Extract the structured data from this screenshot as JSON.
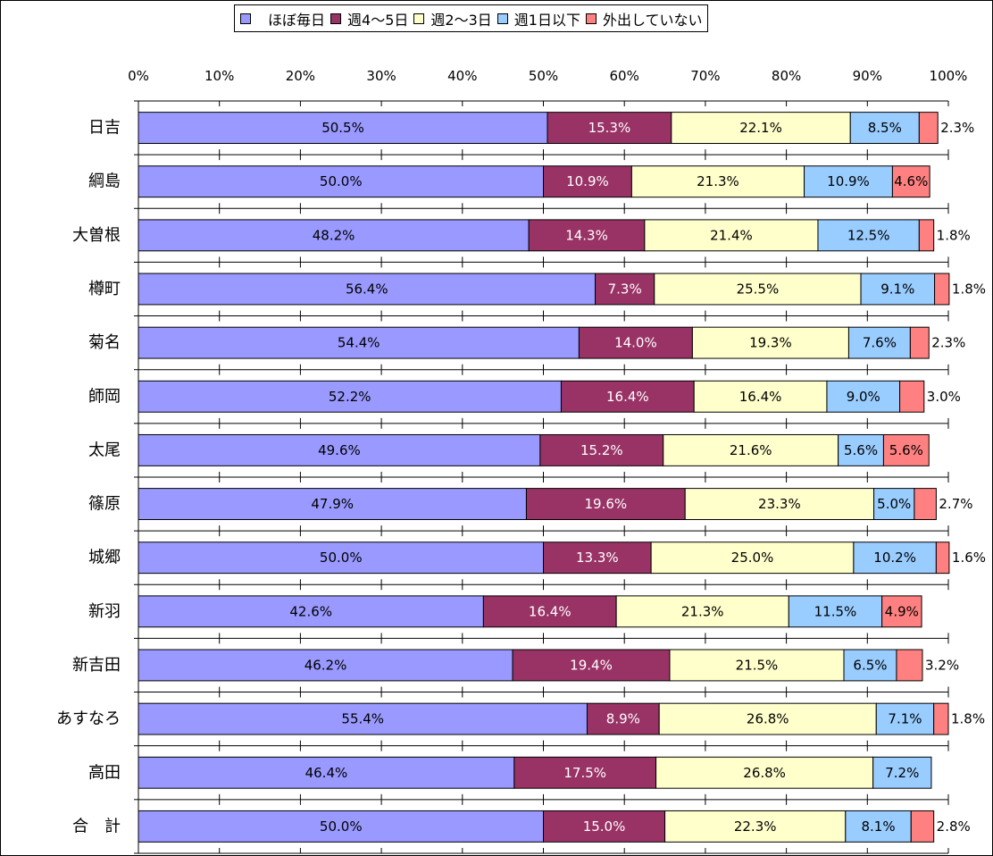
{
  "chart_data": {
    "type": "bar",
    "orientation": "horizontal",
    "stacked": true,
    "categories": [
      "日吉",
      "綱島",
      "大曽根",
      "樽町",
      "菊名",
      "師岡",
      "太尾",
      "篠原",
      "城郷",
      "新羽",
      "新吉田",
      "あすなろ",
      "高田",
      "合　計"
    ],
    "series": [
      {
        "name": "ほぼ毎日",
        "color": "#9999ff",
        "values": [
          50.5,
          50.0,
          48.2,
          56.4,
          54.4,
          52.2,
          49.6,
          47.9,
          50.0,
          42.6,
          46.2,
          55.4,
          46.4,
          50.0
        ],
        "labels": [
          "50.5%",
          "50.0%",
          "48.2%",
          "56.4%",
          "54.4%",
          "52.2%",
          "49.6%",
          "47.9%",
          "50.0%",
          "42.6%",
          "46.2%",
          "55.4%",
          "46.4%",
          "50.0%"
        ]
      },
      {
        "name": "週4～5日",
        "color": "#993366",
        "values": [
          15.3,
          10.9,
          14.3,
          7.3,
          14.0,
          16.4,
          15.2,
          19.6,
          13.3,
          16.4,
          19.4,
          8.9,
          17.5,
          15.0
        ],
        "labels": [
          "15.3%",
          "10.9%",
          "14.3%",
          "7.3%",
          "14.0%",
          "16.4%",
          "15.2%",
          "19.6%",
          "13.3%",
          "16.4%",
          "19.4%",
          "8.9%",
          "17.5%",
          "15.0%"
        ]
      },
      {
        "name": "週2～3日",
        "color": "#ffffcc",
        "values": [
          22.1,
          21.3,
          21.4,
          25.5,
          19.3,
          16.4,
          21.6,
          23.3,
          25.0,
          21.3,
          21.5,
          26.8,
          26.8,
          22.3
        ],
        "labels": [
          "22.1%",
          "21.3%",
          "21.4%",
          "25.5%",
          "19.3%",
          "16.4%",
          "21.6%",
          "23.3%",
          "25.0%",
          "21.3%",
          "21.5%",
          "26.8%",
          "26.8%",
          "22.3%"
        ]
      },
      {
        "name": "週1日以下",
        "color": "#99ccff",
        "values": [
          8.5,
          10.9,
          12.5,
          9.1,
          7.6,
          9.0,
          5.6,
          5.0,
          10.2,
          11.5,
          6.5,
          7.1,
          7.2,
          8.1
        ],
        "labels": [
          "8.5%",
          "10.9%",
          "12.5%",
          "9.1%",
          "7.6%",
          "9.0%",
          "5.6%",
          "5.0%",
          "10.2%",
          "11.5%",
          "6.5%",
          "7.1%",
          "7.2%",
          "8.1%"
        ]
      },
      {
        "name": "外出していない",
        "color": "#ff8080",
        "values": [
          2.3,
          4.6,
          1.8,
          1.8,
          2.3,
          3.0,
          5.6,
          2.7,
          1.6,
          4.9,
          3.2,
          1.8,
          0,
          2.8
        ],
        "labels": [
          "2.3%",
          "4.6%",
          "1.8%",
          "1.8%",
          "2.3%",
          "3.0%",
          "5.6%",
          "2.7%",
          "1.6%",
          "4.9%",
          "3.2%",
          "1.8%",
          "",
          "2.8%"
        ]
      }
    ],
    "x_ticks": [
      "0%",
      "10%",
      "20%",
      "30%",
      "40%",
      "50%",
      "60%",
      "70%",
      "80%",
      "90%",
      "100%"
    ],
    "xlim": [
      0,
      100
    ],
    "grid": false,
    "legend_position": "top",
    "xlabel": "",
    "ylabel": ""
  }
}
